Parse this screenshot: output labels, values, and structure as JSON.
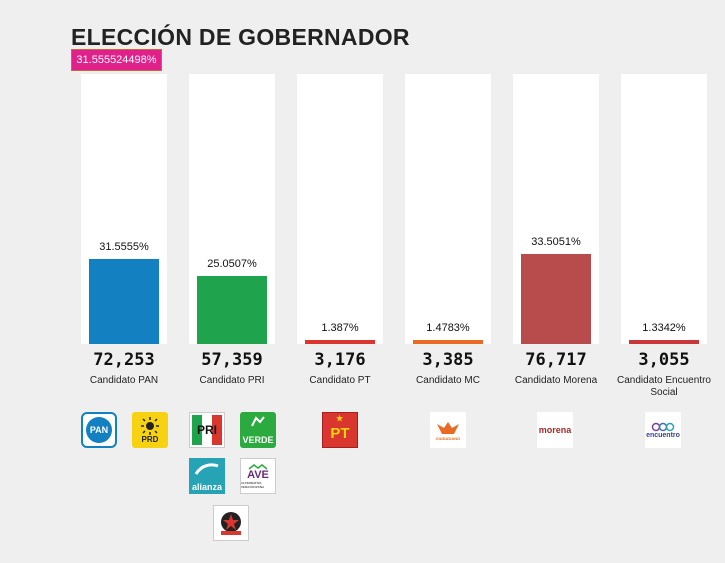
{
  "title": "ELECCIÓN DE GOBERNADOR",
  "tooltip": "31.555524498%",
  "colors": {
    "pan": "#1380c2",
    "pri": "#1fa34d",
    "pt": "#d9362f",
    "mc": "#e96a24",
    "morena": "#b84c4c",
    "es": "#c9373a",
    "tooltip": "#e0218a"
  },
  "chart_data": {
    "type": "bar",
    "categories": [
      "Candidato PAN",
      "Candidato PRI",
      "Candidato PT",
      "Candidato MC",
      "Candidato Morena",
      "Candidato Encuentro Social"
    ],
    "values": [
      31.5555,
      25.0507,
      1.387,
      1.4783,
      33.5051,
      1.3342
    ],
    "ylim": [
      0,
      100
    ],
    "data_labels": [
      "31.5555%",
      "25.0507%",
      "1.387%",
      "1.4783%",
      "33.5051%",
      "1.3342%"
    ],
    "votes": [
      "72,253",
      "57,359",
      "3,176",
      "3,385",
      "76,717",
      "3,055"
    ],
    "title": "ELECCIÓN DE GOBERNADOR",
    "xlabel": "",
    "ylabel": ""
  },
  "logos": {
    "pan": "PAN",
    "prd": "PRD",
    "pri": "PRI",
    "verde": "VERDE",
    "alianza": "alianza",
    "ave": "AVE",
    "ave_sub": "ALTERNATIVA VERACRUZANA",
    "pt": "PT",
    "mc": "CIUDADANO",
    "morena": "morena",
    "es": "encuentro"
  }
}
